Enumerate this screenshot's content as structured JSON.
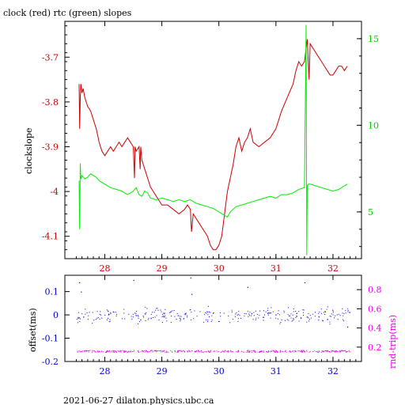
{
  "chart_data": [
    {
      "type": "line",
      "title": "clock (red) rtc (green) slopes",
      "ylabel": "clockslope",
      "xlim": [
        27.3,
        32.5
      ],
      "ylim": [
        -4.15,
        -3.62
      ],
      "y2lim": [
        2.3,
        16.0
      ],
      "x_ticks": [
        28,
        29,
        30,
        31,
        32
      ],
      "y_ticks": [
        -4.1,
        -4,
        -3.9,
        -3.8,
        -3.7
      ],
      "y_tick_labels": [
        "-4.1",
        "-4",
        "-3.9",
        "-3.8",
        "-3.7"
      ],
      "y2_ticks": [
        5,
        10,
        15
      ],
      "y2_tick_labels": [
        "5",
        "10",
        "15"
      ],
      "colors": {
        "red": "#cc0000",
        "green": "#00ee00",
        "axis_left": "#cc0000",
        "axis_right": "#00cc00"
      },
      "series": [
        {
          "axis": "left",
          "color": "#cc0000",
          "x": [
            27.55,
            27.56,
            27.57,
            27.58,
            27.6,
            27.62,
            27.65,
            27.7,
            27.75,
            27.8,
            27.85,
            27.9,
            27.95,
            28.0,
            28.05,
            28.1,
            28.15,
            28.2,
            28.25,
            28.3,
            28.35,
            28.4,
            28.45,
            28.5,
            28.52,
            28.53,
            28.55,
            28.6,
            28.62,
            28.63,
            28.65,
            28.7,
            28.75,
            28.8,
            28.85,
            28.9,
            28.95,
            29.0,
            29.1,
            29.2,
            29.3,
            29.4,
            29.45,
            29.5,
            29.52,
            29.55,
            29.6,
            29.65,
            29.7,
            29.75,
            29.8,
            29.85,
            29.9,
            29.95,
            30.0,
            30.05,
            30.1,
            30.15,
            30.2,
            30.25,
            30.3,
            30.35,
            30.4,
            30.45,
            30.5,
            30.55,
            30.6,
            30.7,
            30.8,
            30.9,
            31.0,
            31.1,
            31.2,
            31.3,
            31.35,
            31.4,
            31.45,
            31.5,
            31.55,
            31.58,
            31.6,
            31.65,
            31.7,
            31.75,
            31.8,
            31.85,
            31.9,
            31.95,
            32.0,
            32.05,
            32.1,
            32.15,
            32.2,
            32.25
          ],
          "y": [
            -3.76,
            -3.86,
            -3.79,
            -3.76,
            -3.78,
            -3.77,
            -3.79,
            -3.81,
            -3.82,
            -3.84,
            -3.86,
            -3.89,
            -3.91,
            -3.92,
            -3.91,
            -3.9,
            -3.91,
            -3.9,
            -3.89,
            -3.9,
            -3.89,
            -3.88,
            -3.89,
            -3.9,
            -3.97,
            -3.9,
            -3.91,
            -3.9,
            -3.95,
            -3.9,
            -3.93,
            -3.95,
            -3.97,
            -3.99,
            -4.0,
            -4.01,
            -4.02,
            -4.03,
            -4.03,
            -4.04,
            -4.05,
            -4.04,
            -4.03,
            -4.04,
            -4.09,
            -4.05,
            -4.06,
            -4.07,
            -4.08,
            -4.09,
            -4.1,
            -4.12,
            -4.13,
            -4.13,
            -4.12,
            -4.1,
            -4.05,
            -4.0,
            -3.97,
            -3.94,
            -3.9,
            -3.88,
            -3.91,
            -3.89,
            -3.88,
            -3.86,
            -3.89,
            -3.9,
            -3.89,
            -3.88,
            -3.86,
            -3.82,
            -3.79,
            -3.76,
            -3.73,
            -3.71,
            -3.72,
            -3.71,
            -3.66,
            -3.75,
            -3.67,
            -3.68,
            -3.69,
            -3.7,
            -3.71,
            -3.72,
            -3.73,
            -3.74,
            -3.74,
            -3.73,
            -3.72,
            -3.72,
            -3.73,
            -3.72
          ]
        },
        {
          "axis": "right",
          "color": "#00ee00",
          "x": [
            27.55,
            27.56,
            27.57,
            27.58,
            27.6,
            27.65,
            27.7,
            27.75,
            27.8,
            27.85,
            27.9,
            27.95,
            28.0,
            28.1,
            28.2,
            28.3,
            28.4,
            28.5,
            28.55,
            28.6,
            28.65,
            28.7,
            28.75,
            28.8,
            28.9,
            29.0,
            29.1,
            29.2,
            29.3,
            29.4,
            29.5,
            29.6,
            29.7,
            29.8,
            29.9,
            30.0,
            30.1,
            30.15,
            30.2,
            30.3,
            30.4,
            30.5,
            30.6,
            30.7,
            30.8,
            30.9,
            31.0,
            31.1,
            31.2,
            31.3,
            31.4,
            31.5,
            31.53,
            31.54,
            31.55,
            31.57,
            31.6,
            31.7,
            31.8,
            31.9,
            32.0,
            32.1,
            32.2,
            32.25
          ],
          "y": [
            6.8,
            4.0,
            7.8,
            6.9,
            7.1,
            6.9,
            7.0,
            7.2,
            7.1,
            7.0,
            6.8,
            6.7,
            6.6,
            6.4,
            6.3,
            6.2,
            6.0,
            6.2,
            6.4,
            6.0,
            5.9,
            6.2,
            6.1,
            5.8,
            5.7,
            5.8,
            5.7,
            5.6,
            5.7,
            5.6,
            5.7,
            5.5,
            5.4,
            5.3,
            5.2,
            5.0,
            4.8,
            4.7,
            5.0,
            5.3,
            5.4,
            5.5,
            5.6,
            5.7,
            5.8,
            5.9,
            5.8,
            6.0,
            6.0,
            6.1,
            6.3,
            6.4,
            15.8,
            2.5,
            6.5,
            6.6,
            6.6,
            6.5,
            6.4,
            6.3,
            6.2,
            6.3,
            6.5,
            6.6
          ]
        }
      ]
    },
    {
      "type": "scatter",
      "ylabel": "offset(ms)",
      "y2label": "rnd-trip(ms)",
      "xlim": [
        27.3,
        32.5
      ],
      "ylim": [
        -0.2,
        0.17
      ],
      "y2lim": [
        0.05,
        0.95
      ],
      "x_ticks": [
        28,
        29,
        30,
        31,
        32
      ],
      "y_ticks": [
        -0.2,
        -0.1,
        0,
        0.1
      ],
      "y_tick_labels": [
        "-0.2",
        "-0.1",
        "0",
        "0.1"
      ],
      "y2_ticks": [
        0.2,
        0.4,
        0.6,
        0.8
      ],
      "y2_tick_labels": [
        "0.2",
        "0.4",
        "0.6",
        "0.8"
      ],
      "colors": {
        "offset": "#0000cc",
        "roundtrip": "#ee00ee",
        "axis_left": "#0000cc",
        "axis_right": "#ee00ee"
      },
      "offset_band": {
        "x_start": 27.5,
        "x_end": 32.3,
        "center": 0.0,
        "spread": 0.04
      },
      "offset_outliers": [
        {
          "x": 27.55,
          "y": 0.14
        },
        {
          "x": 27.58,
          "y": 0.1
        },
        {
          "x": 28.5,
          "y": 0.15
        },
        {
          "x": 29.5,
          "y": 0.16
        },
        {
          "x": 29.52,
          "y": 0.09
        },
        {
          "x": 30.5,
          "y": 0.12
        },
        {
          "x": 31.5,
          "y": 0.14
        },
        {
          "x": 32.25,
          "y": -0.05
        }
      ],
      "roundtrip_band": {
        "x_start": 27.5,
        "x_end": 32.3,
        "center": 0.16,
        "spread": 0.01
      }
    }
  ],
  "footer": "2021-06-27  dilaton.physics.ubc.ca"
}
